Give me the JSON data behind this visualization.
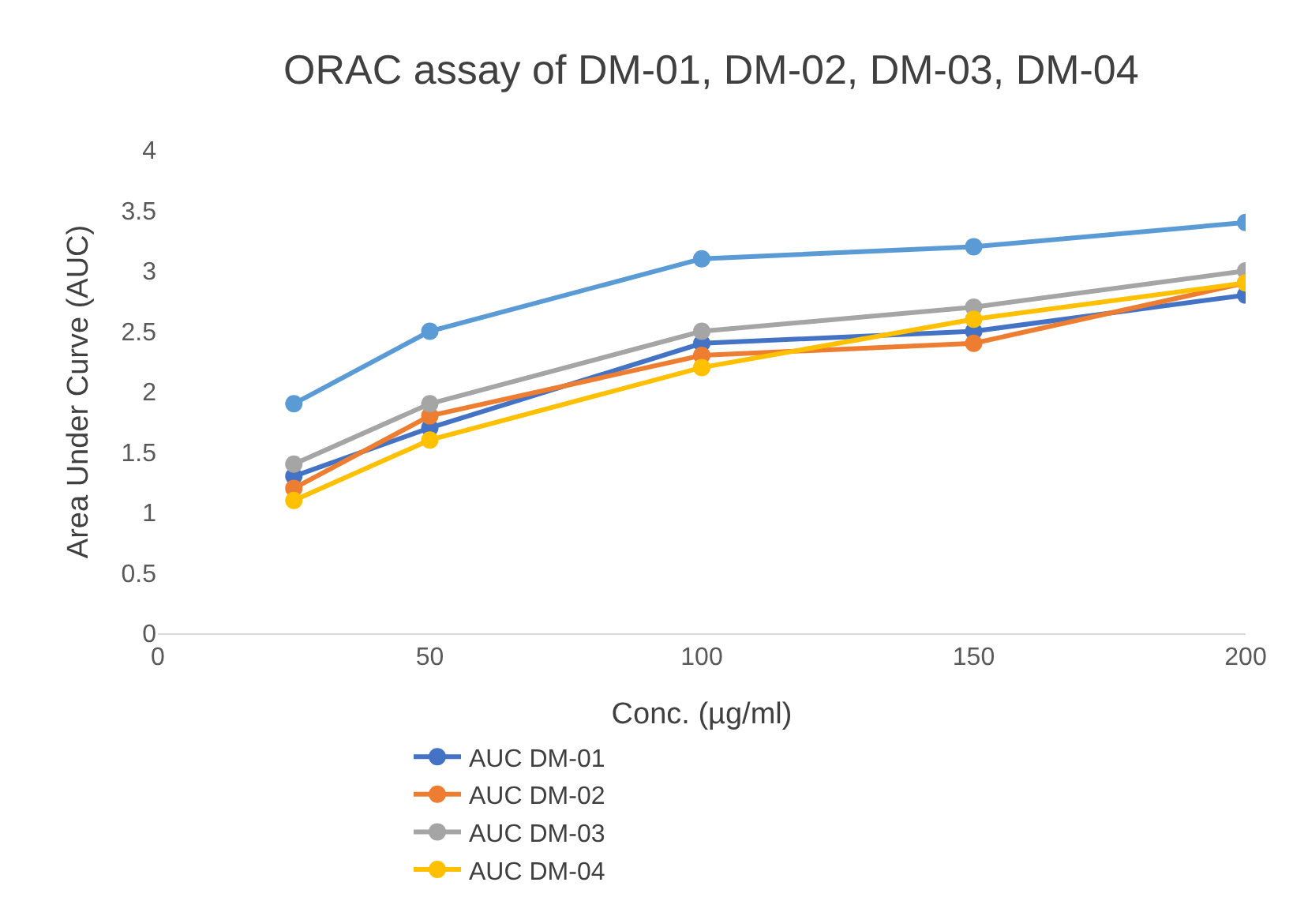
{
  "chart_data": {
    "type": "line",
    "title": "ORAC assay of DM-01, DM-02, DM-03, DM-04",
    "xlabel": "Conc. (µg/ml)",
    "ylabel": "Area Under Curve (AUC)",
    "x": [
      25,
      50,
      100,
      150,
      200
    ],
    "series": [
      {
        "color": "#5b9bd5",
        "values": [
          1.9,
          2.5,
          3.1,
          3.2,
          3.4
        ]
      },
      {
        "name": "AUC DM-01",
        "color": "#4472c4",
        "values": [
          1.3,
          1.7,
          2.4,
          2.5,
          2.8
        ]
      },
      {
        "name": "AUC DM-02",
        "color": "#ed7d31",
        "values": [
          1.2,
          1.8,
          2.3,
          2.4,
          2.9
        ]
      },
      {
        "name": "AUC DM-03",
        "color": "#a5a5a5",
        "values": [
          1.4,
          1.9,
          2.5,
          2.7,
          3.0
        ]
      },
      {
        "name": "AUC DM-04",
        "color": "#ffc000",
        "values": [
          1.1,
          1.6,
          2.2,
          2.6,
          2.9
        ]
      }
    ],
    "xlim": [
      0,
      200
    ],
    "xticks": [
      0,
      50,
      100,
      150,
      200
    ],
    "ylim": [
      0,
      4
    ],
    "yticks": [
      0,
      0.5,
      1,
      1.5,
      2,
      2.5,
      3,
      3.5,
      4
    ],
    "grid": false,
    "legend": "bottom",
    "marker": "circle",
    "line_style": "solid"
  }
}
